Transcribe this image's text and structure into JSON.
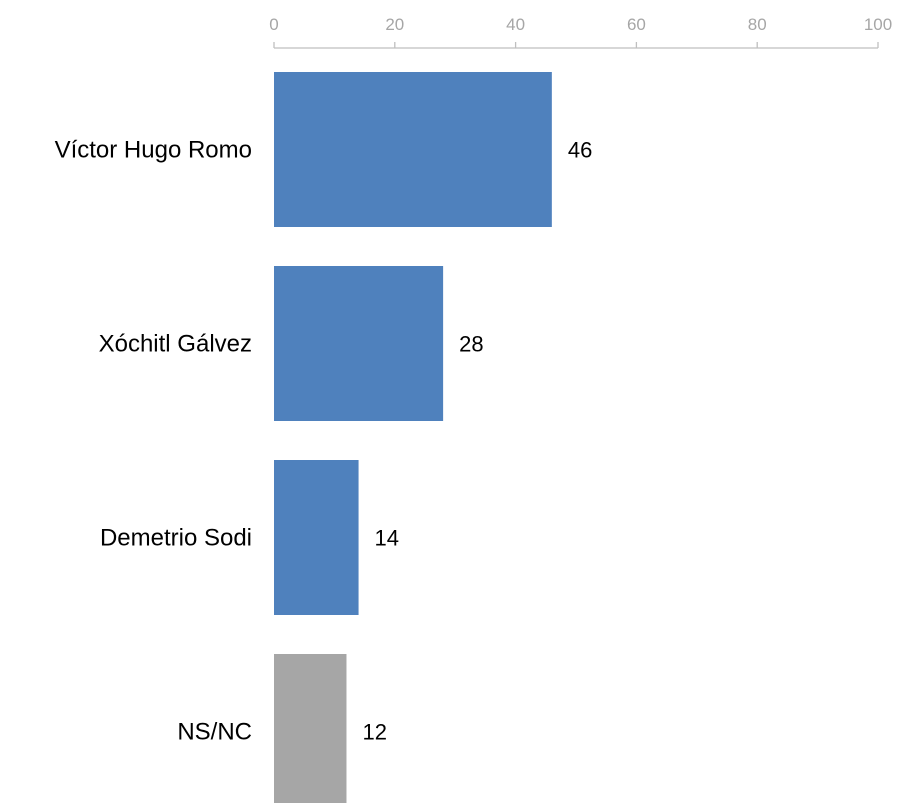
{
  "chart_data": {
    "type": "bar",
    "orientation": "horizontal",
    "categories": [
      "Víctor Hugo Romo",
      "Xóchitl Gálvez",
      "Demetrio Sodi",
      "NS/NC"
    ],
    "values": [
      46,
      28,
      14,
      12
    ],
    "value_labels": [
      "46",
      "28",
      "14",
      "12"
    ],
    "bar_colors": [
      "#4f81bd",
      "#4f81bd",
      "#4f81bd",
      "#a6a6a6"
    ],
    "xlim": [
      0,
      100
    ],
    "x_ticks": [
      0,
      20,
      40,
      60,
      80,
      100
    ],
    "x_tick_labels": [
      "0",
      "20",
      "40",
      "60",
      "80",
      "100"
    ],
    "x_axis_position": "top",
    "axis_color": "#bfbfbf",
    "tick_label_color": "#a6a6a6",
    "grid": false,
    "legend": "none"
  }
}
